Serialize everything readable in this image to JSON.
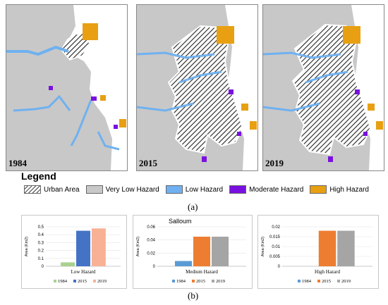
{
  "maps": [
    {
      "year": "1984"
    },
    {
      "year": "2015"
    },
    {
      "year": "2019"
    }
  ],
  "legend": {
    "title": "Legend",
    "items": [
      {
        "label": "Urban Area",
        "pattern": "hatch"
      },
      {
        "label": "Very Low Hazard",
        "color": "#c8c8c8"
      },
      {
        "label": "Low Hazard",
        "color": "#6fb1f0"
      },
      {
        "label": "Moderate Hazard",
        "color": "#7a10e0"
      },
      {
        "label": "High Hazard",
        "color": "#e8a012"
      }
    ]
  },
  "captions": {
    "a": "(a)",
    "b": "(b)"
  },
  "chart_data": [
    {
      "type": "bar",
      "title": "",
      "categories": [
        "1984",
        "2015",
        "2019"
      ],
      "values": [
        0.05,
        0.45,
        0.48
      ],
      "colors": [
        "#a9d18e",
        "#4472c4",
        "#f8b195"
      ],
      "xlabel": "Low Hazard",
      "ylabel": "Area (Km2)",
      "ylim": [
        0,
        0.5
      ],
      "yticks": [
        "0",
        "0.1",
        "0.2",
        "0.3",
        "0.4",
        "0.5"
      ],
      "legend": [
        "1984",
        "2015",
        "2019"
      ]
    },
    {
      "type": "bar",
      "title": "Salloum",
      "categories": [
        "1984",
        "2015",
        "2019"
      ],
      "values": [
        0.008,
        0.045,
        0.045
      ],
      "colors": [
        "#5b9bd5",
        "#ed7d31",
        "#a5a5a5"
      ],
      "xlabel": "Medium Hazard",
      "ylabel": "Area (Km2)",
      "ylim": [
        0,
        0.06
      ],
      "yticks": [
        "0",
        "0.02",
        "0.04",
        "0.06"
      ],
      "legend": [
        "1984",
        "2015",
        "2019"
      ]
    },
    {
      "type": "bar",
      "title": "",
      "categories": [
        "1984",
        "2015",
        "2019"
      ],
      "values": [
        0,
        0.018,
        0.018
      ],
      "colors": [
        "#5b9bd5",
        "#ed7d31",
        "#a5a5a5"
      ],
      "xlabel": "High Hazard",
      "ylabel": "Area (Km2)",
      "ylim": [
        0,
        0.02
      ],
      "yticks": [
        "0",
        "0.005",
        "0.01",
        "0.015",
        "0.02"
      ],
      "legend": [
        "1984",
        "2015",
        "2019"
      ]
    }
  ]
}
